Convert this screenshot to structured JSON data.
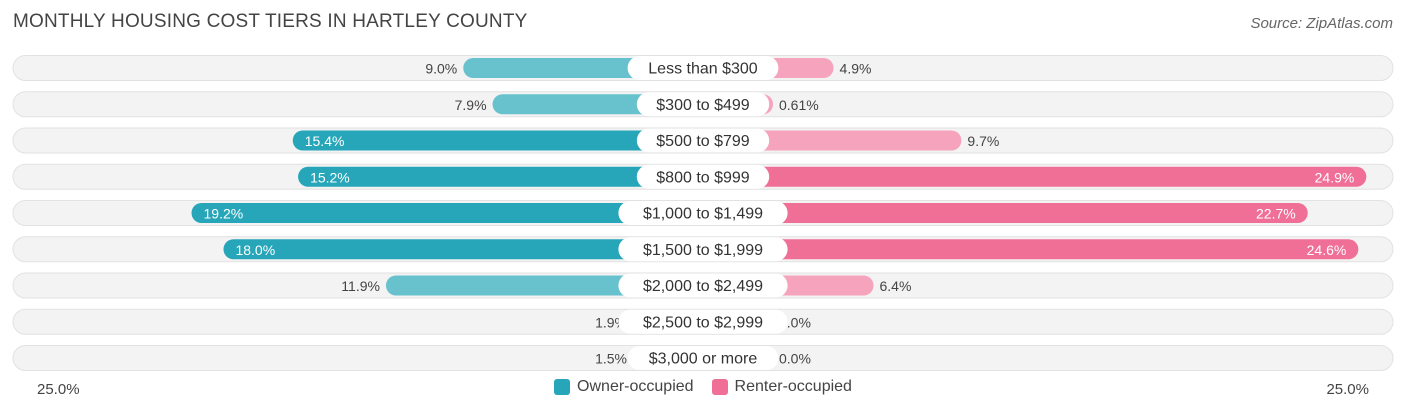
{
  "chart_data": {
    "type": "bar",
    "orientation": "horizontal-diverging",
    "title": "MONTHLY HOUSING COST TIERS IN HARTLEY COUNTY",
    "source": "Source: ZipAtlas.com",
    "categories": [
      "Less than $300",
      "$300 to $499",
      "$500 to $799",
      "$800 to $999",
      "$1,000 to $1,499",
      "$1,500 to $1,999",
      "$2,000 to $2,499",
      "$2,500 to $2,999",
      "$3,000 or more"
    ],
    "series": [
      {
        "name": "Owner-occupied",
        "values": [
          9.0,
          7.9,
          15.4,
          15.2,
          19.2,
          18.0,
          11.9,
          1.9,
          1.5
        ],
        "labels": [
          "9.0%",
          "7.9%",
          "15.4%",
          "15.2%",
          "19.2%",
          "18.0%",
          "11.9%",
          "1.9%",
          "1.5%"
        ]
      },
      {
        "name": "Renter-occupied",
        "values": [
          4.9,
          0.61,
          9.7,
          24.9,
          22.7,
          24.6,
          6.4,
          0.0,
          0.0
        ],
        "labels": [
          "4.9%",
          "0.61%",
          "9.7%",
          "24.9%",
          "22.7%",
          "24.6%",
          "6.4%",
          "0.0%",
          "0.0%"
        ]
      }
    ],
    "xlim": [
      0,
      25
    ],
    "axis_left_label": "25.0%",
    "axis_right_label": "25.0%",
    "legend_position": "bottom-center"
  },
  "colors": {
    "owner_dark": "#26a6b8",
    "owner_light": "#67c2cd",
    "renter_dark": "#f06f97",
    "renter_light": "#f6a3bd",
    "track": "#efefef"
  }
}
